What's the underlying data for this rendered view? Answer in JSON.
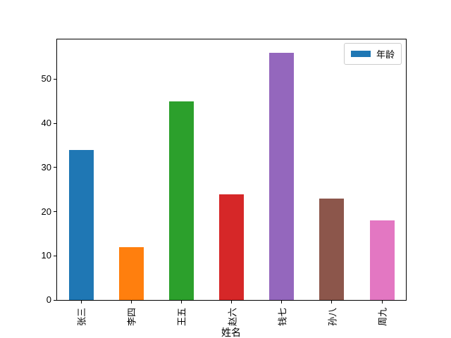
{
  "chart_data": {
    "type": "bar",
    "categories": [
      "张三",
      "李四",
      "王五",
      "赵六",
      "钱七",
      "孙八",
      "周九"
    ],
    "values": [
      34,
      12,
      45,
      24,
      56,
      23,
      18
    ],
    "bar_colors": [
      "#1f77b4",
      "#ff7f0e",
      "#2ca02c",
      "#d62728",
      "#9467bd",
      "#8c564b",
      "#e377c2"
    ],
    "title": "",
    "xlabel": "姓名",
    "ylabel": "",
    "yticks": [
      0,
      10,
      20,
      30,
      40,
      50
    ],
    "ylim": [
      0,
      59
    ],
    "x_tick_rotation": 90,
    "grid": false,
    "legend": {
      "position": "upper right",
      "entries": [
        {
          "label": "年龄",
          "color": "#1f77b4"
        }
      ]
    }
  },
  "figure": {
    "background": "#ffffff",
    "axes_edge_color": "#000000",
    "legend_border_color": "#cccccc"
  }
}
